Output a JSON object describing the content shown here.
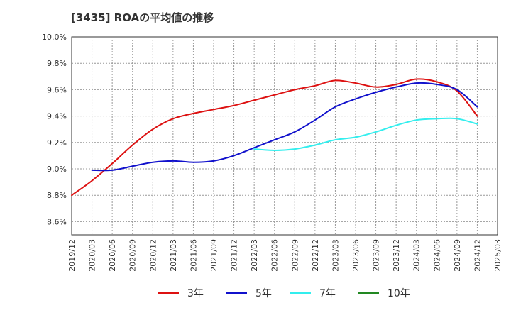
{
  "chart_data": {
    "type": "line",
    "title": "[3435]  ROAの平均値の推移",
    "xlabel": "",
    "ylabel": "",
    "ylim": [
      8.5,
      10.0
    ],
    "y_ticks": [
      8.6,
      8.8,
      9.0,
      9.2,
      9.4,
      9.6,
      9.8,
      10.0
    ],
    "y_tick_labels": [
      "8.6%",
      "8.8%",
      "9.0%",
      "9.2%",
      "9.4%",
      "9.6%",
      "9.8%",
      "10.0%"
    ],
    "x_ticks": [
      "2019/12",
      "2020/03",
      "2020/06",
      "2020/09",
      "2020/12",
      "2021/03",
      "2021/06",
      "2021/09",
      "2021/12",
      "2022/03",
      "2022/06",
      "2022/09",
      "2022/12",
      "2023/03",
      "2023/06",
      "2023/09",
      "2023/12",
      "2024/03",
      "2024/06",
      "2024/09",
      "2024/12",
      "2025/03"
    ],
    "grid": true,
    "legend_position": "bottom",
    "series": [
      {
        "name": "3年",
        "color": "#dd1111",
        "points": [
          [
            "2019/12",
            8.8
          ],
          [
            "2020/03",
            8.91
          ],
          [
            "2020/06",
            9.04
          ],
          [
            "2020/09",
            9.18
          ],
          [
            "2020/12",
            9.3
          ],
          [
            "2021/03",
            9.38
          ],
          [
            "2021/06",
            9.42
          ],
          [
            "2021/09",
            9.45
          ],
          [
            "2021/12",
            9.48
          ],
          [
            "2022/03",
            9.52
          ],
          [
            "2022/06",
            9.56
          ],
          [
            "2022/09",
            9.6
          ],
          [
            "2022/12",
            9.63
          ],
          [
            "2023/03",
            9.67
          ],
          [
            "2023/06",
            9.65
          ],
          [
            "2023/09",
            9.62
          ],
          [
            "2023/12",
            9.64
          ],
          [
            "2024/03",
            9.68
          ],
          [
            "2024/06",
            9.66
          ],
          [
            "2024/09",
            9.59
          ],
          [
            "2024/12",
            9.4
          ]
        ]
      },
      {
        "name": "5年",
        "color": "#1111cc",
        "points": [
          [
            "2020/03",
            8.99
          ],
          [
            "2020/06",
            8.99
          ],
          [
            "2020/09",
            9.02
          ],
          [
            "2020/12",
            9.05
          ],
          [
            "2021/03",
            9.06
          ],
          [
            "2021/06",
            9.05
          ],
          [
            "2021/09",
            9.06
          ],
          [
            "2021/12",
            9.1
          ],
          [
            "2022/03",
            9.16
          ],
          [
            "2022/06",
            9.22
          ],
          [
            "2022/09",
            9.28
          ],
          [
            "2022/12",
            9.37
          ],
          [
            "2023/03",
            9.47
          ],
          [
            "2023/06",
            9.53
          ],
          [
            "2023/09",
            9.58
          ],
          [
            "2023/12",
            9.62
          ],
          [
            "2024/03",
            9.65
          ],
          [
            "2024/06",
            9.64
          ],
          [
            "2024/09",
            9.6
          ],
          [
            "2024/12",
            9.47
          ]
        ]
      },
      {
        "name": "7年",
        "color": "#33eeee",
        "points": [
          [
            "2022/03",
            9.15
          ],
          [
            "2022/06",
            9.14
          ],
          [
            "2022/09",
            9.15
          ],
          [
            "2022/12",
            9.18
          ],
          [
            "2023/03",
            9.22
          ],
          [
            "2023/06",
            9.24
          ],
          [
            "2023/09",
            9.28
          ],
          [
            "2023/12",
            9.33
          ],
          [
            "2024/03",
            9.37
          ],
          [
            "2024/06",
            9.38
          ],
          [
            "2024/09",
            9.38
          ],
          [
            "2024/12",
            9.34
          ]
        ]
      },
      {
        "name": "10年",
        "color": "#228822",
        "points": []
      }
    ]
  }
}
